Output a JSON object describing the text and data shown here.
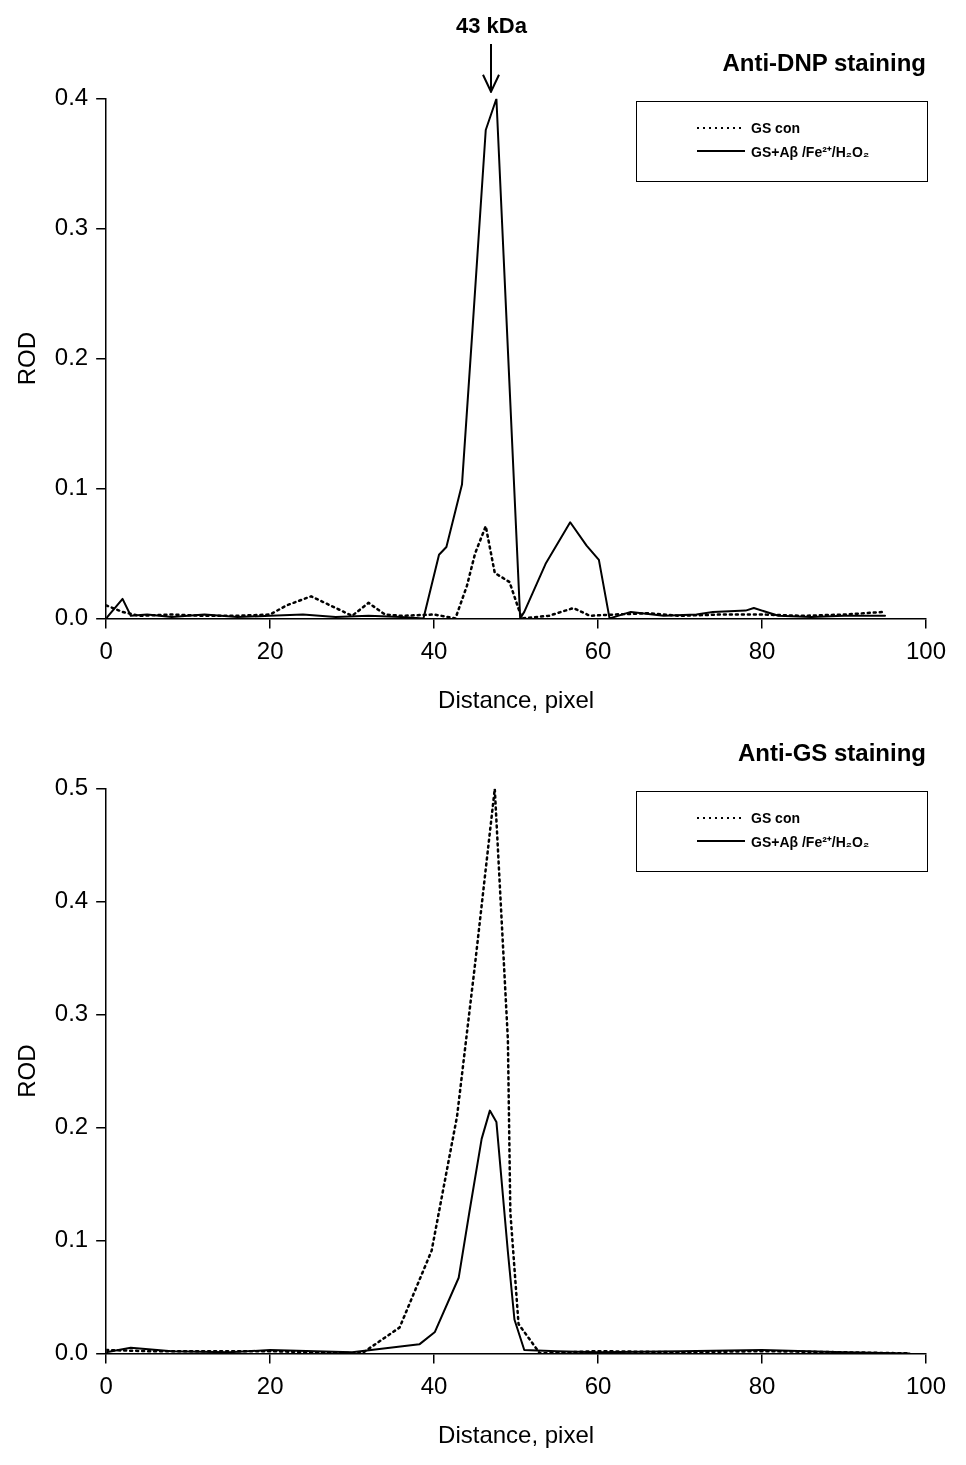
{
  "chart_data": [
    {
      "type": "line",
      "title": "Anti-DNP staining",
      "xlabel": "Distance, pixel",
      "ylabel": "ROD",
      "annotations": [
        {
          "text": "43 kDa",
          "x": 47,
          "y": 0.4
        }
      ],
      "series": [
        {
          "name": "GS con",
          "color": "#000000",
          "line_style": "dotted",
          "x": [
            0,
            2,
            4,
            8,
            12,
            16,
            20,
            22,
            25,
            28,
            30,
            32,
            34,
            36,
            40,
            42.6,
            44,
            45,
            46.3,
            47.4,
            49.2,
            50.7,
            54,
            57,
            59,
            62,
            66,
            70,
            75,
            80,
            85,
            90,
            95
          ],
          "values": [
            0.01,
            0.005,
            0.002,
            0.003,
            0.002,
            0.002,
            0.003,
            0.01,
            0.017,
            0.008,
            0.002,
            0.012,
            0.003,
            0.002,
            0.003,
            0,
            0.025,
            0.05,
            0.071,
            0.035,
            0.028,
            0,
            0.002,
            0.008,
            0.002,
            0.003,
            0.004,
            0.002,
            0.003,
            0.003,
            0.002,
            0.003,
            0.005
          ]
        },
        {
          "name": "GS+Aβ /Fe²⁺/H₂O₂",
          "color": "#000000",
          "line_style": "solid",
          "x": [
            0,
            2,
            3,
            5,
            8,
            12,
            16,
            20,
            24,
            28,
            32,
            36,
            38.7,
            40.6,
            41.5,
            43.4,
            44.7,
            46.3,
            47.6,
            50.5,
            51,
            53.6,
            56.6,
            58.6,
            60.1,
            61.4,
            64,
            68,
            72,
            74,
            78,
            79,
            82,
            86,
            90,
            95
          ],
          "values": [
            0,
            0.015,
            0.002,
            0.003,
            0.001,
            0.003,
            0.001,
            0.002,
            0.003,
            0.001,
            0.002,
            0.001,
            0,
            0.049,
            0.055,
            0.103,
            0.224,
            0.376,
            0.4,
            0,
            0.005,
            0.042,
            0.074,
            0.056,
            0.045,
            0,
            0.005,
            0.002,
            0.003,
            0.005,
            0.006,
            0.008,
            0.002,
            0.001,
            0.002,
            0.002
          ]
        }
      ],
      "xlim": [
        0,
        100
      ],
      "xticks": [
        0,
        20,
        40,
        60,
        80,
        100
      ],
      "ylim": [
        0,
        0.4
      ],
      "yticks": [
        {
          "value": 0,
          "label": "0.0"
        },
        {
          "value": 0.1,
          "label": "0.1"
        },
        {
          "value": 0.2,
          "label": "0.2"
        },
        {
          "value": 0.3,
          "label": "0.3"
        },
        {
          "value": 0.4,
          "label": "0.4"
        }
      ],
      "grid": false,
      "legend": "top right",
      "marker": "none"
    },
    {
      "type": "line",
      "title": "Anti-GS staining",
      "xlabel": "Distance, pixel",
      "ylabel": "ROD",
      "series": [
        {
          "name": "GS con",
          "color": "#000000",
          "line_style": "dotted",
          "x": [
            0,
            5,
            10,
            15,
            20,
            25,
            31.2,
            35.8,
            39.7,
            42.8,
            45,
            47.4,
            49,
            49.3,
            50.3,
            52.9,
            60,
            70,
            80,
            90,
            98
          ],
          "values": [
            0.003,
            0.002,
            0.002,
            0.002,
            0.002,
            0.001,
            0,
            0.023,
            0.091,
            0.21,
            0.345,
            0.5,
            0.278,
            0.125,
            0.026,
            0,
            0.002,
            0.001,
            0.002,
            0.001,
            0
          ]
        },
        {
          "name": "GS+Aβ /Fe²⁺/H₂O₂",
          "color": "#000000",
          "line_style": "solid",
          "x": [
            0,
            3,
            8,
            15,
            20,
            30,
            38.2,
            40.1,
            43,
            44.3,
            45.8,
            46.8,
            47.6,
            49,
            49.8,
            51,
            55,
            60,
            70,
            80,
            90,
            98
          ],
          "values": [
            0.001,
            0.005,
            0.002,
            0.001,
            0.003,
            0.001,
            0.008,
            0.019,
            0.067,
            0.125,
            0.19,
            0.215,
            0.205,
            0.09,
            0.03,
            0.003,
            0.002,
            0.001,
            0.002,
            0.003,
            0.001,
            0
          ]
        }
      ],
      "xlim": [
        0,
        100
      ],
      "xticks": [
        0,
        20,
        40,
        60,
        80,
        100
      ],
      "ylim": [
        0,
        0.5
      ],
      "yticks": [
        {
          "value": 0,
          "label": "0.0"
        },
        {
          "value": 0.1,
          "label": "0.1"
        },
        {
          "value": 0.2,
          "label": "0.2"
        },
        {
          "value": 0.3,
          "label": "0.3"
        },
        {
          "value": 0.4,
          "label": "0.4"
        },
        {
          "value": 0.5,
          "label": "0.5"
        }
      ],
      "grid": false,
      "legend": "top right",
      "marker": "none"
    }
  ]
}
